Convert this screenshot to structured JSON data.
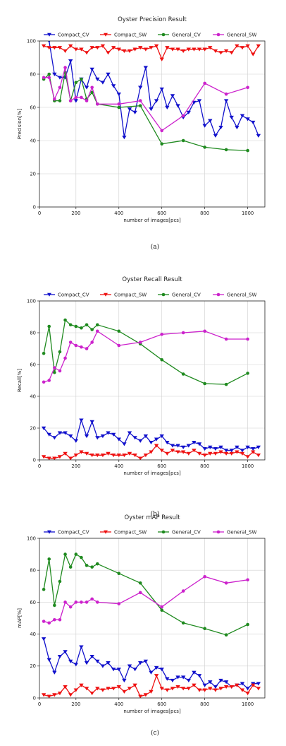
{
  "chart_data": [
    {
      "type": "line",
      "title": "Oyster Precision Result",
      "xlabel": "number of images[pcs]",
      "ylabel": "Precision[%]",
      "caption": "(a)",
      "xlim": [
        30,
        1080
      ],
      "ylim": [
        0,
        100
      ],
      "xticks": [
        0,
        200,
        400,
        600,
        800,
        1000
      ],
      "yticks": [
        0,
        20,
        40,
        60,
        80,
        100
      ],
      "legend": "top",
      "grid": true,
      "series": [
        {
          "name": "Compact_CV",
          "color": "#1111cc",
          "marker": "tri-down",
          "x": [
            50,
            75,
            100,
            125,
            150,
            175,
            200,
            225,
            250,
            275,
            300,
            325,
            350,
            375,
            400,
            425,
            450,
            475,
            500,
            525,
            550,
            575,
            600,
            625,
            650,
            675,
            700,
            725,
            750,
            775,
            800,
            825,
            850,
            875,
            900,
            925,
            950,
            975,
            1000,
            1025,
            1050
          ],
          "y": [
            102,
            100,
            80,
            78,
            78,
            88,
            64,
            77,
            72,
            83,
            77,
            75,
            80,
            73,
            68,
            42,
            59,
            57,
            72,
            84,
            59,
            64,
            71,
            60,
            67,
            61,
            54,
            57,
            63,
            64,
            49,
            52,
            43,
            48,
            64,
            54,
            48,
            55,
            53,
            51,
            43
          ]
        },
        {
          "name": "Compact_SW",
          "color": "#ee1111",
          "marker": "tri-down",
          "x": [
            50,
            75,
            100,
            125,
            150,
            175,
            200,
            225,
            250,
            275,
            300,
            325,
            350,
            375,
            400,
            425,
            450,
            475,
            500,
            525,
            550,
            575,
            600,
            625,
            650,
            675,
            700,
            725,
            750,
            775,
            800,
            825,
            850,
            875,
            900,
            925,
            950,
            975,
            1000,
            1025,
            1050
          ],
          "y": [
            97,
            96,
            96,
            96,
            94,
            97,
            95,
            95,
            93,
            96,
            96,
            97,
            93,
            96,
            95,
            94,
            94,
            95,
            96,
            95,
            96,
            97,
            89,
            96,
            95,
            95,
            94,
            95,
            95,
            95,
            95,
            96,
            94,
            93,
            94,
            93,
            97,
            96,
            97,
            92,
            97
          ]
        },
        {
          "name": "General_CV",
          "color": "#1f8a1f",
          "marker": "circle",
          "x": [
            50,
            75,
            100,
            125,
            150,
            175,
            200,
            225,
            250,
            275,
            300,
            400,
            500,
            600,
            700,
            800,
            900,
            1000
          ],
          "y": [
            77,
            80,
            64,
            64,
            81,
            64,
            75,
            77,
            65,
            69,
            62,
            60,
            61,
            38,
            40,
            36,
            34.5,
            34
          ]
        },
        {
          "name": "General_SW",
          "color": "#cc22cc",
          "marker": "circle",
          "x": [
            50,
            75,
            100,
            125,
            150,
            175,
            200,
            225,
            250,
            275,
            300,
            400,
            500,
            600,
            700,
            800,
            900,
            1000
          ],
          "y": [
            78,
            78,
            65,
            72,
            84,
            64,
            66,
            66,
            64,
            72,
            62,
            62,
            64,
            46,
            55,
            74.5,
            68,
            72
          ]
        }
      ]
    },
    {
      "type": "line",
      "title": "Oyster Recall Result",
      "xlabel": "number of images[pcs]",
      "ylabel": "Recall[%]",
      "caption": "(b)",
      "xlim": [
        30,
        1080
      ],
      "ylim": [
        0,
        100
      ],
      "xticks": [
        0,
        200,
        400,
        600,
        800,
        1000
      ],
      "yticks": [
        0,
        20,
        40,
        60,
        80,
        100
      ],
      "legend": "top",
      "grid": true,
      "series": [
        {
          "name": "Compact_CV",
          "color": "#1111cc",
          "marker": "tri-down",
          "x": [
            50,
            75,
            100,
            125,
            150,
            175,
            200,
            225,
            250,
            275,
            300,
            325,
            350,
            375,
            400,
            425,
            450,
            475,
            500,
            525,
            550,
            575,
            600,
            625,
            650,
            675,
            700,
            725,
            750,
            775,
            800,
            825,
            850,
            875,
            900,
            925,
            950,
            975,
            1000,
            1025,
            1050
          ],
          "y": [
            20,
            16,
            14,
            17,
            17,
            15,
            12,
            25,
            15,
            24,
            14,
            15,
            17,
            16,
            13,
            10,
            17,
            14,
            12,
            15,
            11,
            13,
            15,
            11,
            9,
            9,
            8,
            9,
            11,
            10,
            7,
            8,
            7,
            8,
            6,
            6,
            8,
            6,
            8,
            7,
            8
          ]
        },
        {
          "name": "Compact_SW",
          "color": "#ee1111",
          "marker": "tri-down",
          "x": [
            50,
            75,
            100,
            125,
            150,
            175,
            200,
            225,
            250,
            275,
            300,
            325,
            350,
            375,
            400,
            425,
            450,
            475,
            500,
            525,
            550,
            575,
            600,
            625,
            650,
            675,
            700,
            725,
            750,
            775,
            800,
            825,
            850,
            875,
            900,
            925,
            950,
            975,
            1000,
            1025,
            1050
          ],
          "y": [
            2,
            1,
            1,
            2,
            4,
            1,
            3,
            5,
            4,
            3,
            3,
            3,
            4,
            3,
            3,
            3,
            4,
            3,
            1,
            3,
            5,
            9,
            6,
            4,
            6,
            5,
            5,
            4,
            6,
            4,
            3,
            4,
            4,
            5,
            4,
            4,
            5,
            4,
            2,
            5,
            3
          ]
        },
        {
          "name": "General_CV",
          "color": "#1f8a1f",
          "marker": "circle",
          "x": [
            50,
            75,
            100,
            125,
            150,
            175,
            200,
            225,
            250,
            275,
            300,
            400,
            500,
            600,
            700,
            800,
            900,
            1000
          ],
          "y": [
            67,
            84,
            55,
            68,
            88,
            85,
            84,
            83,
            85,
            82,
            85,
            81,
            73,
            63,
            54,
            48,
            47.5,
            54.5
          ]
        },
        {
          "name": "General_SW",
          "color": "#cc22cc",
          "marker": "circle",
          "x": [
            50,
            75,
            100,
            125,
            150,
            175,
            200,
            225,
            250,
            275,
            300,
            400,
            500,
            600,
            700,
            800,
            900,
            1000
          ],
          "y": [
            49,
            50,
            58,
            56,
            64,
            74,
            72,
            71,
            70,
            74,
            81,
            72,
            74,
            79,
            80,
            81,
            76,
            76
          ]
        }
      ]
    },
    {
      "type": "line",
      "title": "Oyster mAP Result",
      "xlabel": "number of images[pcs]",
      "ylabel": "mAP[%]",
      "caption": "(c)",
      "xlim": [
        30,
        1080
      ],
      "ylim": [
        0,
        100
      ],
      "xticks": [
        0,
        200,
        400,
        600,
        800,
        1000
      ],
      "yticks": [
        0,
        20,
        40,
        60,
        80,
        100
      ],
      "legend": "top",
      "grid": true,
      "series": [
        {
          "name": "Compact_CV",
          "color": "#1111cc",
          "marker": "tri-down",
          "x": [
            50,
            75,
            100,
            125,
            150,
            175,
            200,
            225,
            250,
            275,
            300,
            325,
            350,
            375,
            400,
            425,
            450,
            475,
            500,
            525,
            550,
            575,
            600,
            625,
            650,
            675,
            700,
            725,
            750,
            775,
            800,
            825,
            850,
            875,
            900,
            925,
            950,
            975,
            1000,
            1025,
            1050
          ],
          "y": [
            37,
            24,
            16,
            26,
            29,
            23,
            21,
            32,
            22,
            26,
            23,
            20,
            22,
            18,
            18,
            11,
            20,
            18,
            22,
            23,
            16,
            19,
            18,
            12,
            11,
            13,
            13,
            11,
            16,
            14,
            8,
            10,
            7,
            11,
            10,
            7,
            8,
            9,
            6,
            9,
            9
          ]
        },
        {
          "name": "Compact_SW",
          "color": "#ee1111",
          "marker": "tri-down",
          "x": [
            50,
            75,
            100,
            125,
            150,
            175,
            200,
            225,
            250,
            275,
            300,
            325,
            350,
            375,
            400,
            425,
            450,
            475,
            500,
            525,
            550,
            575,
            600,
            625,
            650,
            675,
            700,
            725,
            750,
            775,
            800,
            825,
            850,
            875,
            900,
            925,
            950,
            975,
            1000,
            1025,
            1050
          ],
          "y": [
            2,
            1,
            2,
            3,
            7,
            2,
            5,
            8,
            6,
            3,
            6,
            5,
            6,
            6,
            7,
            4,
            6,
            8,
            1,
            2,
            4,
            14,
            6,
            5,
            6,
            7,
            6,
            6,
            8,
            5,
            5,
            6,
            5,
            6,
            7,
            7,
            8,
            5,
            3,
            8,
            6
          ]
        },
        {
          "name": "General_CV",
          "color": "#1f8a1f",
          "marker": "circle",
          "x": [
            50,
            75,
            100,
            125,
            150,
            175,
            200,
            225,
            250,
            275,
            300,
            400,
            500,
            600,
            700,
            800,
            900,
            1000
          ],
          "y": [
            68,
            87,
            58,
            73,
            90,
            82,
            90,
            88,
            83,
            82,
            84,
            78,
            72,
            55,
            47,
            43.5,
            39.5,
            46
          ]
        },
        {
          "name": "General_SW",
          "color": "#cc22cc",
          "marker": "circle",
          "x": [
            50,
            75,
            100,
            125,
            150,
            175,
            200,
            225,
            250,
            275,
            300,
            400,
            500,
            600,
            700,
            800,
            900,
            1000
          ],
          "y": [
            48,
            47,
            49,
            49,
            60,
            57,
            60,
            60,
            60,
            62,
            60,
            59,
            66,
            57,
            67,
            76,
            72,
            74
          ]
        }
      ]
    }
  ]
}
